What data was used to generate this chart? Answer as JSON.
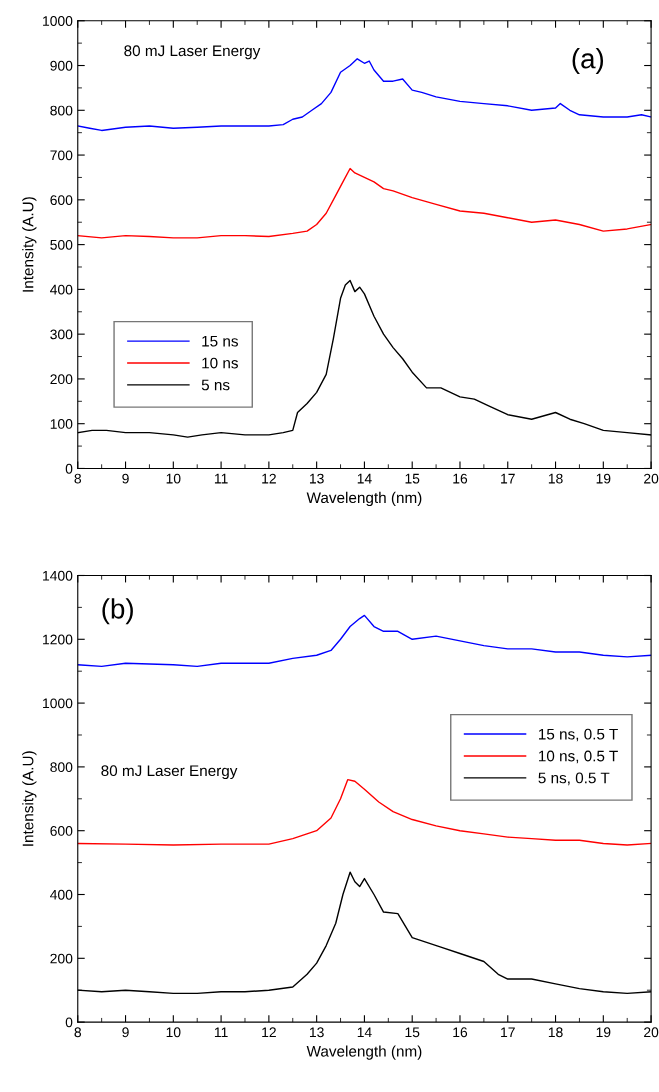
{
  "chart_data": [
    {
      "type": "line",
      "xlabel": "Wavelength (nm)",
      "ylabel": "Intensity (A.U)",
      "xlim": [
        8,
        20
      ],
      "xticks": [
        8,
        9,
        10,
        11,
        12,
        13,
        14,
        15,
        16,
        17,
        18,
        19,
        20
      ],
      "ylim": [
        0,
        1000
      ],
      "yticks": [
        0,
        100,
        200,
        300,
        400,
        500,
        600,
        700,
        800,
        900,
        1000
      ],
      "grid": false,
      "legend": "bottom left",
      "annotations": [
        "80 mJ Laser Energy",
        "(a)"
      ],
      "series": [
        {
          "name": "15 ns",
          "color": "#0000ff",
          "x": [
            8,
            8.25,
            8.5,
            9,
            9.5,
            10,
            10.5,
            11,
            11.5,
            12,
            12.3,
            12.5,
            12.7,
            12.9,
            13.1,
            13.3,
            13.5,
            13.7,
            13.85,
            14,
            14.1,
            14.2,
            14.4,
            14.6,
            14.8,
            15,
            15.2,
            15.5,
            16,
            16.5,
            17,
            17.5,
            18,
            18.1,
            18.3,
            18.5,
            19,
            19.5,
            19.8,
            20
          ],
          "values": [
            765,
            760,
            755,
            762,
            765,
            760,
            762,
            765,
            765,
            765,
            768,
            780,
            785,
            800,
            815,
            840,
            885,
            900,
            915,
            905,
            910,
            890,
            865,
            865,
            870,
            845,
            840,
            830,
            820,
            815,
            810,
            800,
            805,
            815,
            800,
            790,
            785,
            785,
            790,
            785
          ]
        },
        {
          "name": "10 ns",
          "color": "#ff0000",
          "x": [
            8,
            8.5,
            9,
            9.5,
            10,
            10.5,
            11,
            11.5,
            12,
            12.5,
            12.8,
            13,
            13.2,
            13.4,
            13.55,
            13.7,
            13.8,
            14,
            14.2,
            14.4,
            14.6,
            15,
            15.5,
            16,
            16.5,
            17,
            17.5,
            18,
            18.5,
            19,
            19.5,
            20
          ],
          "values": [
            520,
            515,
            520,
            518,
            515,
            515,
            520,
            520,
            518,
            525,
            530,
            545,
            570,
            610,
            640,
            670,
            660,
            650,
            640,
            625,
            620,
            605,
            590,
            575,
            570,
            560,
            550,
            555,
            545,
            530,
            535,
            545
          ]
        },
        {
          "name": "5 ns",
          "color": "#000000",
          "x": [
            8,
            8.3,
            8.6,
            9,
            9.5,
            10,
            10.3,
            10.6,
            11,
            11.5,
            12,
            12.3,
            12.5,
            12.6,
            12.8,
            13,
            13.2,
            13.35,
            13.5,
            13.6,
            13.7,
            13.8,
            13.9,
            14,
            14.2,
            14.4,
            14.6,
            14.8,
            15,
            15.3,
            15.6,
            16,
            16.3,
            16.6,
            17,
            17.5,
            18,
            18.3,
            18.6,
            19,
            19.5,
            20
          ],
          "values": [
            80,
            85,
            85,
            80,
            80,
            75,
            70,
            75,
            80,
            75,
            75,
            80,
            85,
            125,
            145,
            170,
            210,
            290,
            380,
            410,
            420,
            395,
            405,
            390,
            340,
            300,
            270,
            245,
            215,
            180,
            180,
            160,
            155,
            140,
            120,
            110,
            125,
            110,
            100,
            85,
            80,
            75
          ]
        }
      ]
    },
    {
      "type": "line",
      "xlabel": "Wavelength (nm)",
      "ylabel": "Intensity (A.U)",
      "xlim": [
        8,
        20
      ],
      "xticks": [
        8,
        9,
        10,
        11,
        12,
        13,
        14,
        15,
        16,
        17,
        18,
        19,
        20
      ],
      "ylim": [
        0,
        1400
      ],
      "yticks": [
        0,
        200,
        400,
        600,
        800,
        1000,
        1200,
        1400
      ],
      "grid": false,
      "legend": "right",
      "annotations": [
        "(b)",
        "80 mJ Laser Energy"
      ],
      "series": [
        {
          "name": "15 ns, 0.5 T",
          "color": "#0000ff",
          "x": [
            8,
            8.5,
            9,
            10,
            10.5,
            11,
            11.5,
            12,
            12.5,
            13,
            13.3,
            13.5,
            13.7,
            13.9,
            14,
            14.2,
            14.4,
            14.7,
            15,
            15.5,
            16,
            16.5,
            17,
            17.5,
            18,
            18.5,
            19,
            19.5,
            20
          ],
          "values": [
            1120,
            1115,
            1125,
            1120,
            1115,
            1125,
            1125,
            1125,
            1140,
            1150,
            1165,
            1200,
            1240,
            1265,
            1275,
            1240,
            1225,
            1225,
            1200,
            1210,
            1195,
            1180,
            1170,
            1170,
            1160,
            1160,
            1150,
            1145,
            1150
          ]
        },
        {
          "name": "10 ns, 0.5 T",
          "color": "#ff0000",
          "x": [
            8,
            9,
            10,
            11,
            12,
            12.5,
            13,
            13.3,
            13.5,
            13.65,
            13.8,
            14,
            14.3,
            14.6,
            15,
            15.5,
            16,
            16.5,
            17,
            17.5,
            18,
            18.5,
            19,
            19.5,
            20
          ],
          "values": [
            560,
            558,
            555,
            558,
            558,
            575,
            600,
            640,
            700,
            760,
            755,
            730,
            690,
            660,
            635,
            615,
            600,
            590,
            580,
            575,
            570,
            570,
            560,
            555,
            560
          ]
        },
        {
          "name": "5 ns, 0.5 T",
          "color": "#000000",
          "x": [
            8,
            8.5,
            9,
            9.5,
            10,
            10.5,
            11,
            11.5,
            12,
            12.5,
            12.8,
            13,
            13.2,
            13.4,
            13.55,
            13.7,
            13.8,
            13.9,
            14,
            14.2,
            14.4,
            14.7,
            15,
            15.3,
            15.6,
            16,
            16.5,
            16.8,
            17,
            17.5,
            18,
            18.5,
            19,
            19.5,
            20
          ],
          "values": [
            100,
            95,
            100,
            95,
            90,
            90,
            95,
            95,
            100,
            110,
            150,
            185,
            240,
            310,
            400,
            470,
            440,
            425,
            450,
            400,
            345,
            340,
            265,
            250,
            235,
            215,
            190,
            150,
            135,
            135,
            120,
            105,
            95,
            90,
            95
          ]
        }
      ]
    }
  ]
}
